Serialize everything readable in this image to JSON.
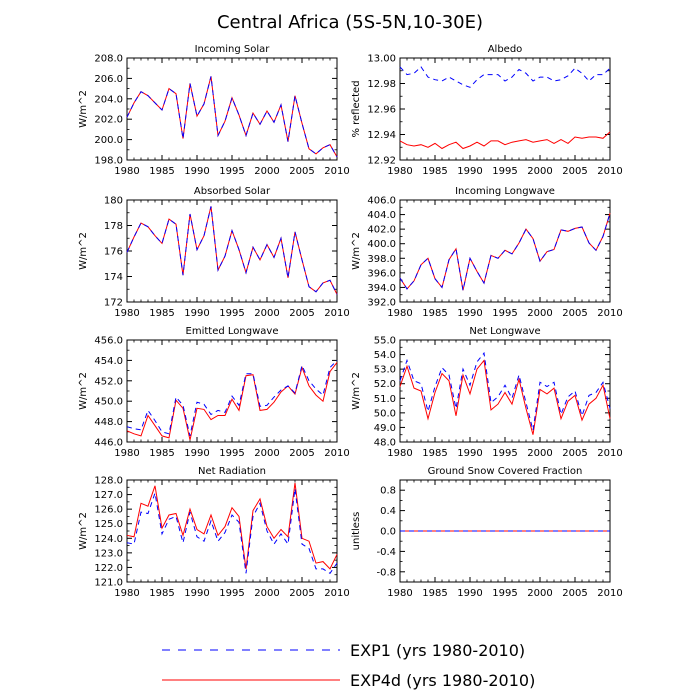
{
  "figure_title": "Central Africa (5S-5N,10-30E)",
  "legend": [
    {
      "label": "EXP1 (yrs 1980-2010)",
      "color": "#0000ff",
      "dashed": true
    },
    {
      "label": "EXP4d (yrs 1980-2010)",
      "color": "#ff0000",
      "dashed": false
    }
  ],
  "chart_data": [
    {
      "type": "line",
      "title": "Incoming Solar",
      "ylabel": "W/m^2",
      "xlim": [
        1980,
        2010
      ],
      "ylim": [
        198,
        208
      ],
      "xticks": [
        "1980",
        "1985",
        "1990",
        "1995",
        "2000",
        "2005",
        "2010"
      ],
      "yticks": [
        "198.0",
        "200.0",
        "202.0",
        "204.0",
        "206.0",
        "208.0"
      ],
      "x": [
        1980,
        1981,
        1982,
        1983,
        1984,
        1985,
        1986,
        1987,
        1988,
        1989,
        1990,
        1991,
        1992,
        1993,
        1994,
        1995,
        1996,
        1997,
        1998,
        1999,
        2000,
        2001,
        2002,
        2003,
        2004,
        2005,
        2006,
        2007,
        2008,
        2009,
        2010
      ],
      "series": [
        {
          "name": "EXP1",
          "values": [
            202.2,
            203.6,
            204.7,
            204.3,
            203.6,
            202.9,
            205.0,
            204.5,
            200.1,
            205.5,
            202.3,
            203.5,
            206.2,
            200.4,
            201.8,
            204.1,
            202.4,
            200.4,
            202.6,
            201.5,
            202.8,
            201.7,
            203.4,
            199.8,
            204.3,
            201.6,
            199.1,
            198.6,
            199.2,
            199.5,
            198.3
          ]
        },
        {
          "name": "EXP4d",
          "values": [
            202.2,
            203.6,
            204.7,
            204.3,
            203.6,
            202.9,
            205.0,
            204.5,
            200.1,
            205.5,
            202.3,
            203.5,
            206.2,
            200.4,
            201.8,
            204.1,
            202.4,
            200.4,
            202.6,
            201.5,
            202.8,
            201.7,
            203.4,
            199.8,
            204.3,
            201.6,
            199.1,
            198.6,
            199.2,
            199.5,
            198.3
          ]
        }
      ]
    },
    {
      "type": "line",
      "title": "Albedo",
      "ylabel": "% reflected",
      "xlim": [
        1980,
        2010
      ],
      "ylim": [
        12.92,
        13.0
      ],
      "xticks": [
        "1980",
        "1985",
        "1990",
        "1995",
        "2000",
        "2005",
        "2010"
      ],
      "yticks": [
        "12.92",
        "12.94",
        "12.96",
        "12.98",
        "13.00"
      ],
      "x": [
        1980,
        1981,
        1982,
        1983,
        1984,
        1985,
        1986,
        1987,
        1988,
        1989,
        1990,
        1991,
        1992,
        1993,
        1994,
        1995,
        1996,
        1997,
        1998,
        1999,
        2000,
        2001,
        2002,
        2003,
        2004,
        2005,
        2006,
        2007,
        2008,
        2009,
        2010
      ],
      "series": [
        {
          "name": "EXP1",
          "values": [
            12.993,
            12.987,
            12.988,
            12.993,
            12.985,
            12.983,
            12.982,
            12.985,
            12.982,
            12.979,
            12.977,
            12.983,
            12.987,
            12.987,
            12.987,
            12.982,
            12.985,
            12.991,
            12.988,
            12.982,
            12.985,
            12.985,
            12.982,
            12.983,
            12.986,
            12.992,
            12.988,
            12.982,
            12.987,
            12.987,
            12.992
          ]
        },
        {
          "name": "EXP4d",
          "values": [
            12.935,
            12.932,
            12.931,
            12.932,
            12.93,
            12.933,
            12.929,
            12.932,
            12.934,
            12.929,
            12.931,
            12.934,
            12.931,
            12.935,
            12.935,
            12.932,
            12.934,
            12.935,
            12.936,
            12.934,
            12.935,
            12.936,
            12.933,
            12.936,
            12.933,
            12.938,
            12.937,
            12.938,
            12.938,
            12.937,
            12.942
          ]
        }
      ]
    },
    {
      "type": "line",
      "title": "Absorbed Solar",
      "ylabel": "W/m^2",
      "xlim": [
        1980,
        2010
      ],
      "ylim": [
        172,
        180
      ],
      "xticks": [
        "1980",
        "1985",
        "1990",
        "1995",
        "2000",
        "2005",
        "2010"
      ],
      "yticks": [
        "172",
        "174",
        "176",
        "178",
        "180"
      ],
      "x": [
        1980,
        1981,
        1982,
        1983,
        1984,
        1985,
        1986,
        1987,
        1988,
        1989,
        1990,
        1991,
        1992,
        1993,
        1994,
        1995,
        1996,
        1997,
        1998,
        1999,
        2000,
        2001,
        2002,
        2003,
        2004,
        2005,
        2006,
        2007,
        2008,
        2009,
        2010
      ],
      "series": [
        {
          "name": "EXP1",
          "values": [
            175.9,
            177.1,
            178.2,
            177.9,
            177.2,
            176.6,
            178.5,
            178.1,
            174.1,
            178.9,
            176.1,
            177.2,
            179.5,
            174.5,
            175.6,
            177.6,
            176.1,
            174.3,
            176.3,
            175.3,
            176.5,
            175.5,
            177.0,
            173.9,
            177.5,
            175.3,
            173.2,
            172.8,
            173.5,
            173.7,
            172.6
          ]
        },
        {
          "name": "EXP4d",
          "values": [
            175.9,
            177.1,
            178.2,
            177.9,
            177.2,
            176.6,
            178.5,
            178.1,
            174.1,
            178.9,
            176.1,
            177.2,
            179.5,
            174.5,
            175.6,
            177.6,
            176.1,
            174.3,
            176.3,
            175.3,
            176.5,
            175.5,
            177.0,
            173.9,
            177.5,
            175.3,
            173.2,
            172.8,
            173.5,
            173.7,
            172.6
          ]
        }
      ]
    },
    {
      "type": "line",
      "title": "Incoming Longwave",
      "ylabel": "W/m^2",
      "xlim": [
        1980,
        2010
      ],
      "ylim": [
        392,
        406
      ],
      "xticks": [
        "1980",
        "1985",
        "1990",
        "1995",
        "2000",
        "2005",
        "2010"
      ],
      "yticks": [
        "392.0",
        "394.0",
        "396.0",
        "398.0",
        "400.0",
        "402.0",
        "404.0",
        "406.0"
      ],
      "x": [
        1980,
        1981,
        1982,
        1983,
        1984,
        1985,
        1986,
        1987,
        1988,
        1989,
        1990,
        1991,
        1992,
        1993,
        1994,
        1995,
        1996,
        1997,
        1998,
        1999,
        2000,
        2001,
        2002,
        2003,
        2004,
        2005,
        2006,
        2007,
        2008,
        2009,
        2010
      ],
      "series": [
        {
          "name": "EXP1",
          "values": [
            395.3,
            393.8,
            394.9,
            397.1,
            398.0,
            395.2,
            394.0,
            397.8,
            399.3,
            393.6,
            398.0,
            396.2,
            394.6,
            398.4,
            398.0,
            399.1,
            398.6,
            400.1,
            402.0,
            400.7,
            397.6,
            398.9,
            399.2,
            401.9,
            401.7,
            402.1,
            402.3,
            400.1,
            399.1,
            401.0,
            404.2
          ]
        },
        {
          "name": "EXP4d",
          "values": [
            395.3,
            393.8,
            394.9,
            397.1,
            398.0,
            395.2,
            394.0,
            397.8,
            399.3,
            393.6,
            398.0,
            396.2,
            394.6,
            398.4,
            398.0,
            399.1,
            398.6,
            400.1,
            402.0,
            400.7,
            397.6,
            398.9,
            399.2,
            401.9,
            401.7,
            402.1,
            402.3,
            400.1,
            399.1,
            401.0,
            404.2
          ]
        }
      ]
    },
    {
      "type": "line",
      "title": "Emitted Longwave",
      "ylabel": "W/m^2",
      "xlim": [
        1980,
        2010
      ],
      "ylim": [
        446,
        456
      ],
      "xticks": [
        "1980",
        "1985",
        "1990",
        "1995",
        "2000",
        "2005",
        "2010"
      ],
      "yticks": [
        "446.0",
        "448.0",
        "450.0",
        "452.0",
        "454.0",
        "456.0"
      ],
      "x": [
        1980,
        1981,
        1982,
        1983,
        1984,
        1985,
        1986,
        1987,
        1988,
        1989,
        1990,
        1991,
        1992,
        1993,
        1994,
        1995,
        1996,
        1997,
        1998,
        1999,
        2000,
        2001,
        2002,
        2003,
        2004,
        2005,
        2006,
        2007,
        2008,
        2009,
        2010
      ],
      "series": [
        {
          "name": "EXP1",
          "values": [
            447.5,
            447.3,
            447.2,
            449.1,
            448.1,
            447.0,
            446.8,
            450.4,
            449.6,
            446.6,
            449.9,
            449.7,
            448.7,
            449.1,
            448.9,
            450.5,
            449.6,
            452.7,
            452.7,
            449.5,
            449.6,
            450.4,
            451.1,
            451.5,
            450.8,
            453.5,
            452.0,
            451.2,
            450.6,
            453.3,
            454.0
          ]
        },
        {
          "name": "EXP4d",
          "values": [
            447.1,
            446.8,
            446.6,
            448.6,
            447.6,
            446.6,
            446.4,
            450.1,
            449.3,
            446.2,
            449.3,
            449.2,
            448.2,
            448.6,
            448.6,
            450.2,
            449.1,
            452.5,
            452.6,
            449.1,
            449.2,
            449.9,
            450.9,
            451.5,
            450.7,
            453.3,
            451.5,
            450.6,
            450.0,
            452.9,
            453.8
          ]
        }
      ]
    },
    {
      "type": "line",
      "title": "Net Longwave",
      "ylabel": "W/m^2",
      "xlim": [
        1980,
        2010
      ],
      "ylim": [
        48,
        55
      ],
      "xticks": [
        "1980",
        "1985",
        "1990",
        "1995",
        "2000",
        "2005",
        "2010"
      ],
      "yticks": [
        "48.0",
        "49.0",
        "50.0",
        "51.0",
        "52.0",
        "53.0",
        "54.0",
        "55.0"
      ],
      "x": [
        1980,
        1981,
        1982,
        1983,
        1984,
        1985,
        1986,
        1987,
        1988,
        1989,
        1990,
        1991,
        1992,
        1993,
        1994,
        1995,
        1996,
        1997,
        1998,
        1999,
        2000,
        2001,
        2002,
        2003,
        2004,
        2005,
        2006,
        2007,
        2008,
        2009,
        2010
      ],
      "series": [
        {
          "name": "EXP1",
          "values": [
            52.2,
            53.6,
            52.2,
            52.0,
            50.1,
            51.8,
            53.1,
            52.6,
            50.3,
            53.0,
            51.9,
            53.5,
            54.1,
            50.7,
            51.1,
            51.9,
            51.0,
            52.6,
            50.7,
            48.8,
            52.1,
            51.8,
            52.1,
            49.9,
            51.1,
            51.5,
            49.8,
            51.2,
            51.4,
            52.1,
            50.3
          ]
        },
        {
          "name": "EXP4d",
          "values": [
            51.8,
            53.2,
            51.7,
            51.5,
            49.6,
            51.4,
            52.7,
            52.2,
            49.8,
            52.6,
            51.3,
            53.0,
            53.6,
            50.2,
            50.6,
            51.4,
            50.6,
            52.3,
            50.3,
            48.5,
            51.6,
            51.3,
            51.7,
            49.6,
            50.8,
            51.2,
            49.5,
            50.6,
            51.0,
            51.9,
            49.6
          ]
        }
      ]
    },
    {
      "type": "line",
      "title": "Net Radiation",
      "ylabel": "W/m^2",
      "xlim": [
        1980,
        2010
      ],
      "ylim": [
        121,
        128
      ],
      "xticks": [
        "1980",
        "1985",
        "1990",
        "1995",
        "2000",
        "2005",
        "2010"
      ],
      "yticks": [
        "121.0",
        "122.0",
        "123.0",
        "124.0",
        "125.0",
        "126.0",
        "127.0",
        "128.0"
      ],
      "x": [
        1980,
        1981,
        1982,
        1983,
        1984,
        1985,
        1986,
        1987,
        1988,
        1989,
        1990,
        1991,
        1992,
        1993,
        1994,
        1995,
        1996,
        1997,
        1998,
        1999,
        2000,
        2001,
        2002,
        2003,
        2004,
        2005,
        2006,
        2007,
        2008,
        2009,
        2010
      ],
      "series": [
        {
          "name": "EXP1",
          "values": [
            123.7,
            123.6,
            125.8,
            125.7,
            127.1,
            124.3,
            125.3,
            125.5,
            123.7,
            125.8,
            124.1,
            123.8,
            125.2,
            123.8,
            124.4,
            125.6,
            125.1,
            121.6,
            125.5,
            126.4,
            124.5,
            123.6,
            124.3,
            123.6,
            127.4,
            123.6,
            123.3,
            121.9,
            121.9,
            121.6,
            122.3
          ]
        },
        {
          "name": "EXP4d",
          "values": [
            124.2,
            124.1,
            126.4,
            126.2,
            127.6,
            124.7,
            125.6,
            125.7,
            124.2,
            126.0,
            124.6,
            124.3,
            125.6,
            124.2,
            124.8,
            126.1,
            125.5,
            121.9,
            125.9,
            126.7,
            124.8,
            124.0,
            124.6,
            124.1,
            127.8,
            124.0,
            123.8,
            122.3,
            122.4,
            121.9,
            122.9
          ]
        }
      ]
    },
    {
      "type": "line",
      "title": "Ground Snow Covered Fraction",
      "ylabel": "unitless",
      "xlim": [
        1980,
        2010
      ],
      "ylim": [
        -1,
        1
      ],
      "xticks": [
        "1980",
        "1985",
        "1990",
        "1995",
        "2000",
        "2005",
        "2010"
      ],
      "yticks": [
        "-0.8",
        "-0.4",
        "0.0",
        "0.4",
        "0.8"
      ],
      "x": [
        1980,
        1981,
        1982,
        1983,
        1984,
        1985,
        1986,
        1987,
        1988,
        1989,
        1990,
        1991,
        1992,
        1993,
        1994,
        1995,
        1996,
        1997,
        1998,
        1999,
        2000,
        2001,
        2002,
        2003,
        2004,
        2005,
        2006,
        2007,
        2008,
        2009,
        2010
      ],
      "series": [
        {
          "name": "EXP1",
          "values": [
            0,
            0,
            0,
            0,
            0,
            0,
            0,
            0,
            0,
            0,
            0,
            0,
            0,
            0,
            0,
            0,
            0,
            0,
            0,
            0,
            0,
            0,
            0,
            0,
            0,
            0,
            0,
            0,
            0,
            0,
            0
          ]
        },
        {
          "name": "EXP4d",
          "values": [
            0,
            0,
            0,
            0,
            0,
            0,
            0,
            0,
            0,
            0,
            0,
            0,
            0,
            0,
            0,
            0,
            0,
            0,
            0,
            0,
            0,
            0,
            0,
            0,
            0,
            0,
            0,
            0,
            0,
            0,
            0
          ]
        }
      ]
    }
  ]
}
